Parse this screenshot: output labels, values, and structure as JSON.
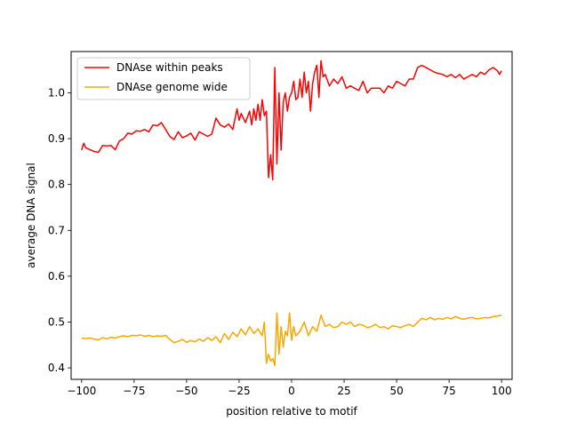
{
  "chart_data": {
    "type": "line",
    "title": "",
    "xlabel": "position relative to motif",
    "ylabel": "average DNA signal",
    "xlim": [
      -105,
      105
    ],
    "ylim": [
      0.375,
      1.09
    ],
    "xticks": [
      -100,
      -75,
      -50,
      -25,
      0,
      25,
      50,
      75,
      100
    ],
    "xtick_labels": [
      "−100",
      "−75",
      "−50",
      "−25",
      "0",
      "25",
      "50",
      "75",
      "100"
    ],
    "yticks": [
      0.4,
      0.5,
      0.6,
      0.7,
      0.8,
      0.9,
      1.0
    ],
    "ytick_labels": [
      "0.4",
      "0.5",
      "0.6",
      "0.7",
      "0.8",
      "0.9",
      "1.0"
    ],
    "grid": false,
    "legend_position": "top-left",
    "series": [
      {
        "name": "DNAse within peaks",
        "color": "#ff0000",
        "x": [
          -100,
          -99,
          -98,
          -96,
          -94,
          -92,
          -90,
          -88,
          -86,
          -84,
          -82,
          -80,
          -78,
          -76,
          -74,
          -72,
          -70,
          -68,
          -66,
          -64,
          -62,
          -60,
          -58,
          -56,
          -54,
          -52,
          -50,
          -48,
          -46,
          -44,
          -42,
          -40,
          -38,
          -36,
          -34,
          -32,
          -30,
          -28,
          -26,
          -25,
          -24,
          -22,
          -20,
          -19,
          -18,
          -17,
          -16,
          -15,
          -14,
          -13,
          -12,
          -11,
          -10,
          -9,
          -8,
          -7,
          -6,
          -5,
          -4,
          -3,
          -2,
          -1,
          0,
          1,
          2,
          3,
          4,
          5,
          6,
          7,
          8,
          9,
          10,
          11,
          12,
          13,
          14,
          15,
          16,
          18,
          20,
          22,
          24,
          26,
          28,
          30,
          32,
          34,
          36,
          38,
          40,
          42,
          44,
          46,
          48,
          50,
          52,
          54,
          56,
          58,
          60,
          62,
          64,
          66,
          68,
          70,
          72,
          74,
          76,
          78,
          80,
          82,
          84,
          86,
          88,
          90,
          92,
          94,
          96,
          98,
          99,
          100
        ],
        "values": [
          0.875,
          0.89,
          0.88,
          0.876,
          0.872,
          0.87,
          0.885,
          0.884,
          0.885,
          0.876,
          0.895,
          0.9,
          0.912,
          0.91,
          0.917,
          0.916,
          0.92,
          0.915,
          0.93,
          0.928,
          0.935,
          0.92,
          0.905,
          0.898,
          0.915,
          0.902,
          0.906,
          0.912,
          0.897,
          0.915,
          0.91,
          0.905,
          0.91,
          0.945,
          0.93,
          0.925,
          0.932,
          0.92,
          0.965,
          0.94,
          0.955,
          0.935,
          0.96,
          0.93,
          0.965,
          0.94,
          0.975,
          0.94,
          0.985,
          0.95,
          0.96,
          0.815,
          0.865,
          0.81,
          1.055,
          0.845,
          1.0,
          0.875,
          0.98,
          1.0,
          0.96,
          0.99,
          1.0,
          1.025,
          0.985,
          0.99,
          1.03,
          0.99,
          1.045,
          1.0,
          1.025,
          0.96,
          1.02,
          1.045,
          1.06,
          0.99,
          1.07,
          1.035,
          1.04,
          1.015,
          1.03,
          1.02,
          1.035,
          1.01,
          1.015,
          1.01,
          1.005,
          1.025,
          1.0,
          1.01,
          1.01,
          1.01,
          1.0,
          1.015,
          1.01,
          1.025,
          1.02,
          1.015,
          1.03,
          1.03,
          1.055,
          1.06,
          1.055,
          1.05,
          1.045,
          1.042,
          1.04,
          1.035,
          1.04,
          1.033,
          1.04,
          1.03,
          1.035,
          1.04,
          1.035,
          1.045,
          1.04,
          1.05,
          1.055,
          1.048,
          1.04,
          1.048
        ]
      },
      {
        "name": "DNAse genome wide",
        "color": "#ffa500",
        "x": [
          -100,
          -98,
          -96,
          -94,
          -92,
          -90,
          -88,
          -86,
          -84,
          -82,
          -80,
          -78,
          -76,
          -74,
          -72,
          -70,
          -68,
          -66,
          -64,
          -62,
          -60,
          -58,
          -56,
          -54,
          -52,
          -50,
          -48,
          -46,
          -44,
          -42,
          -40,
          -38,
          -36,
          -34,
          -32,
          -30,
          -28,
          -26,
          -24,
          -22,
          -20,
          -18,
          -16,
          -14,
          -13,
          -12,
          -11,
          -10,
          -9,
          -8,
          -7,
          -6,
          -5,
          -4,
          -3,
          -2,
          -1,
          0,
          1,
          2,
          4,
          6,
          8,
          10,
          12,
          14,
          16,
          18,
          20,
          22,
          24,
          26,
          28,
          30,
          32,
          34,
          36,
          38,
          40,
          42,
          44,
          46,
          48,
          50,
          52,
          54,
          56,
          58,
          60,
          62,
          64,
          66,
          68,
          70,
          72,
          74,
          76,
          78,
          80,
          82,
          84,
          86,
          88,
          90,
          92,
          94,
          96,
          98,
          100
        ],
        "values": [
          0.465,
          0.464,
          0.465,
          0.463,
          0.461,
          0.466,
          0.463,
          0.467,
          0.465,
          0.468,
          0.47,
          0.468,
          0.471,
          0.47,
          0.472,
          0.469,
          0.471,
          0.468,
          0.47,
          0.469,
          0.471,
          0.462,
          0.455,
          0.458,
          0.462,
          0.456,
          0.46,
          0.457,
          0.463,
          0.458,
          0.466,
          0.46,
          0.468,
          0.455,
          0.475,
          0.462,
          0.478,
          0.468,
          0.485,
          0.472,
          0.49,
          0.475,
          0.485,
          0.47,
          0.5,
          0.41,
          0.43,
          0.415,
          0.42,
          0.405,
          0.52,
          0.43,
          0.49,
          0.445,
          0.48,
          0.47,
          0.52,
          0.46,
          0.49,
          0.47,
          0.48,
          0.5,
          0.47,
          0.49,
          0.48,
          0.515,
          0.49,
          0.495,
          0.488,
          0.49,
          0.5,
          0.495,
          0.5,
          0.49,
          0.495,
          0.493,
          0.488,
          0.49,
          0.495,
          0.488,
          0.49,
          0.485,
          0.492,
          0.49,
          0.488,
          0.492,
          0.495,
          0.49,
          0.5,
          0.508,
          0.505,
          0.51,
          0.505,
          0.508,
          0.506,
          0.51,
          0.507,
          0.512,
          0.508,
          0.506,
          0.509,
          0.51,
          0.507,
          0.508,
          0.51,
          0.509,
          0.512,
          0.513,
          0.515
        ]
      }
    ]
  }
}
